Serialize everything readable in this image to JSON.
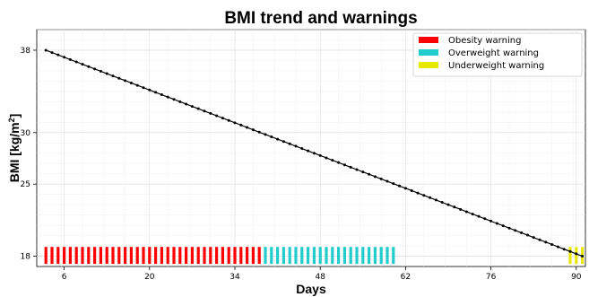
{
  "chart_data": {
    "type": "line",
    "title": "BMI trend and warnings",
    "xlabel": "Days",
    "ylabel": "BMI [kg/m²]",
    "ylabel_main": "BMI [kg/m",
    "ylabel_sup": "2",
    "ylabel_end": "]",
    "xlim": [
      1.5,
      91.5
    ],
    "ylim": [
      17,
      40
    ],
    "xticks": [
      6,
      20,
      34,
      48,
      62,
      76,
      90
    ],
    "yticks": [
      18,
      25,
      30,
      38
    ],
    "grid": true,
    "legend_position": "top-right",
    "series": [
      {
        "start": {
          "x": 3,
          "y": 38
        },
        "end": {
          "x": 91,
          "y": 18
        },
        "step": 1,
        "color": "#000000"
      }
    ],
    "warnings": [
      {
        "name": "Obesity warning",
        "color": "#ff0000",
        "x_start": 3,
        "x_end": 38
      },
      {
        "name": "Overweight warning",
        "color": "#22cccc",
        "x_start": 39,
        "x_end": 60
      },
      {
        "name": "Underweight warning",
        "color": "#e8e800",
        "x_start": 89,
        "x_end": 91
      }
    ]
  }
}
